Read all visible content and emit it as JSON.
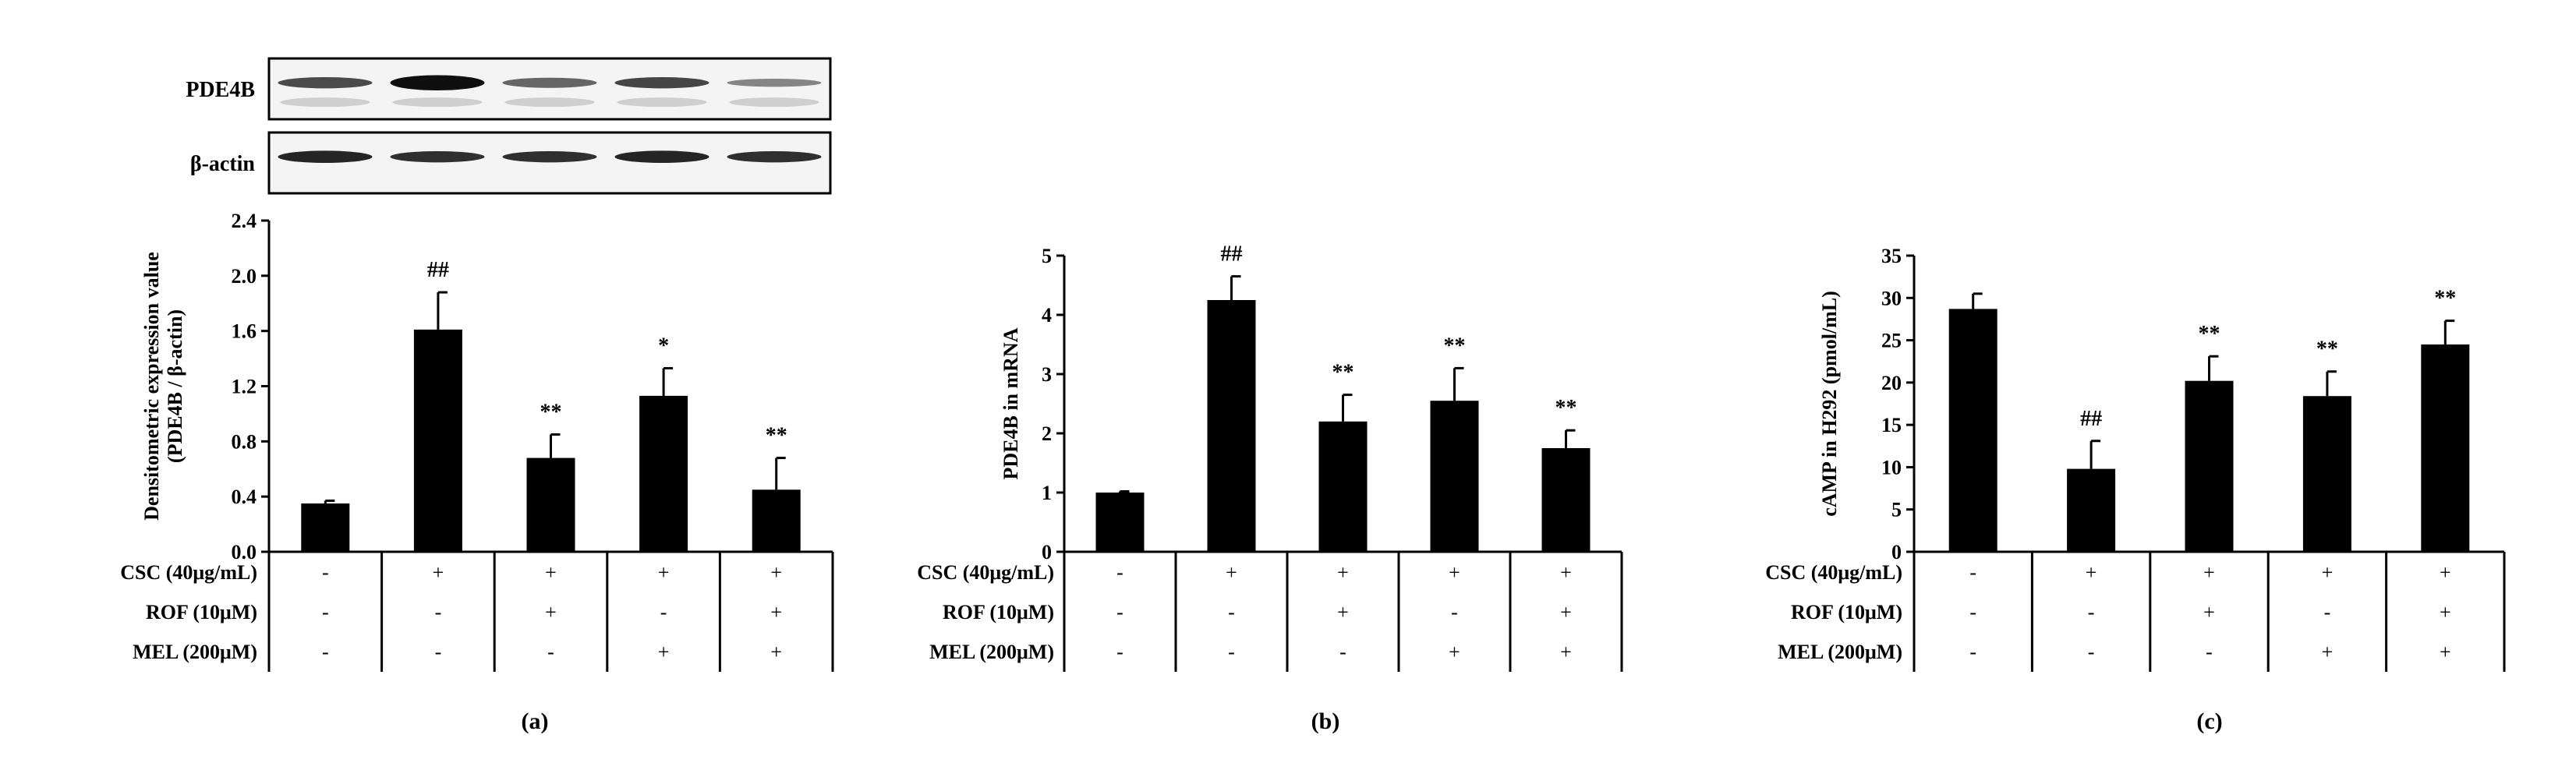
{
  "blot": {
    "rows": [
      {
        "label": "PDE4B",
        "intensity": [
          0.72,
          1.0,
          0.6,
          0.75,
          0.45
        ],
        "thickness": [
          0.55,
          0.75,
          0.5,
          0.55,
          0.4
        ]
      },
      {
        "label": "β-actin",
        "intensity": [
          0.9,
          0.85,
          0.85,
          0.9,
          0.85
        ],
        "thickness": [
          0.6,
          0.55,
          0.55,
          0.6,
          0.55
        ]
      }
    ]
  },
  "conditions": {
    "rows": [
      {
        "label": "CSC (40μg/mL)",
        "signs": [
          "-",
          "+",
          "+",
          "+",
          "+"
        ]
      },
      {
        "label": "ROF (10μM)",
        "signs": [
          "-",
          "-",
          "+",
          "-",
          "+"
        ]
      },
      {
        "label": "MEL (200μM)",
        "signs": [
          "-",
          "-",
          "-",
          "+",
          "+"
        ]
      }
    ]
  },
  "chart_data": [
    {
      "type": "bar",
      "panel": "(a)",
      "ylabel_lines": [
        "Densitometric expression value",
        "(PDE4B / β-actin)"
      ],
      "ylim": [
        0,
        2.4
      ],
      "yticks": [
        "0.0",
        "0.4",
        "0.8",
        "1.2",
        "1.6",
        "2.0",
        "2.4"
      ],
      "values": [
        0.35,
        1.61,
        0.68,
        1.13,
        0.45
      ],
      "errors": [
        0.02,
        0.27,
        0.17,
        0.2,
        0.23
      ],
      "annotations": [
        "",
        "##",
        "**",
        "*",
        "**"
      ],
      "bar_color": "#000000"
    },
    {
      "type": "bar",
      "panel": "(b)",
      "ylabel_lines": [
        "PDE4B in mRNA"
      ],
      "ylim": [
        0,
        5
      ],
      "yticks": [
        "0",
        "1",
        "2",
        "3",
        "4",
        "5"
      ],
      "values": [
        1.0,
        4.25,
        2.2,
        2.55,
        1.75
      ],
      "errors": [
        0.02,
        0.4,
        0.45,
        0.55,
        0.3
      ],
      "annotations": [
        "",
        "##",
        "**",
        "**",
        "**"
      ],
      "bar_color": "#000000"
    },
    {
      "type": "bar",
      "panel": "(c)",
      "ylabel_lines": [
        "cAMP in H292 (pmol/mL)"
      ],
      "ylim": [
        0,
        35
      ],
      "yticks": [
        "0",
        "5",
        "10",
        "15",
        "20",
        "25",
        "30",
        "35"
      ],
      "values": [
        28.7,
        9.8,
        20.2,
        18.4,
        24.5
      ],
      "errors": [
        1.8,
        3.3,
        2.9,
        2.9,
        2.8
      ],
      "annotations": [
        "",
        "##",
        "**",
        "**",
        "**"
      ],
      "bar_color": "#000000"
    }
  ]
}
